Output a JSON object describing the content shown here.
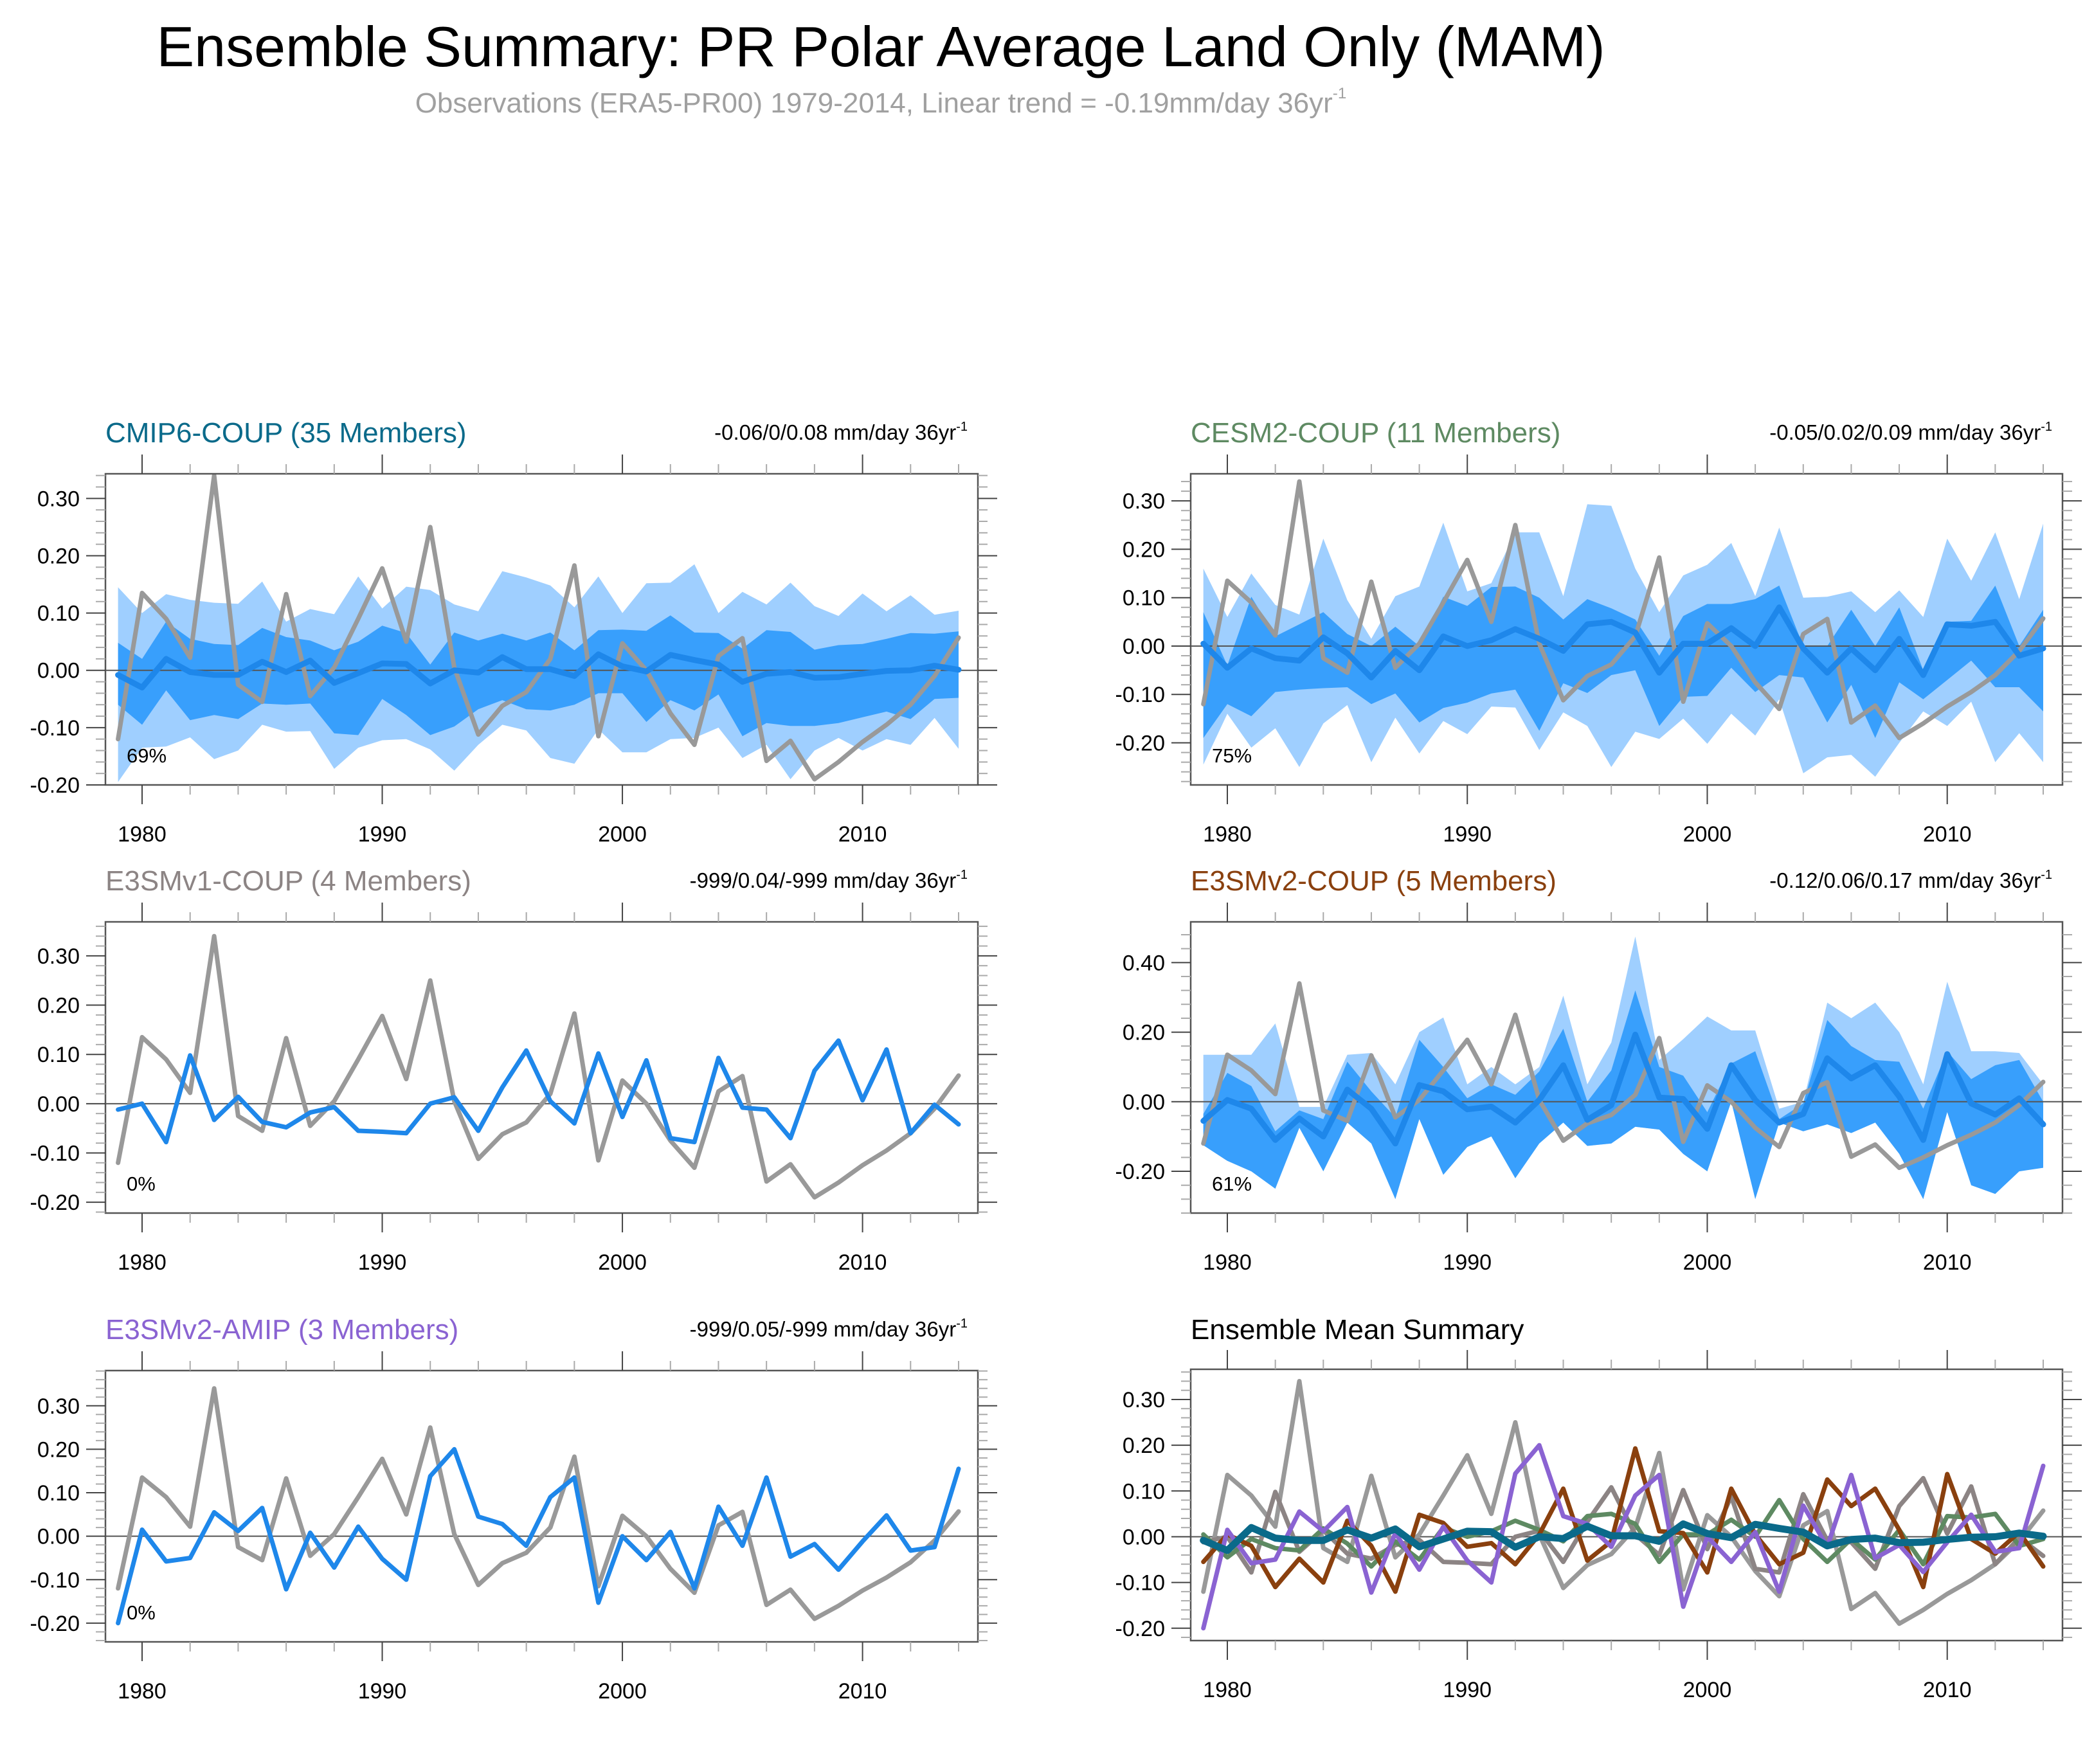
{
  "header": {
    "title": "Ensemble Summary: PR Polar Average Land Only (MAM)",
    "subtitle_main": "Observations (ERA5-PR00) 1979-2014, Linear trend = -0.19mm/day 36yr",
    "subtitle_sup": "-1"
  },
  "colors": {
    "obs": "#999999",
    "band_outer": "#9fcfff",
    "band_inner": "#389ffc",
    "mean_line": "#1e87ea",
    "zero_line": "#555555",
    "cmip6": "#0a6a8a",
    "cesm2": "#5e8a62",
    "e3smv1": "#8c8484",
    "e3smv2_coup": "#8a400e",
    "e3smv2_amip": "#8a63d2"
  },
  "chart_data": {
    "type": "line",
    "title": "Ensemble Summary: PR Polar Average Land Only (MAM)",
    "xlabel": "",
    "ylabel": "",
    "x": [
      1979,
      1980,
      1981,
      1982,
      1983,
      1984,
      1985,
      1986,
      1987,
      1988,
      1989,
      1990,
      1991,
      1992,
      1993,
      1994,
      1995,
      1996,
      1997,
      1998,
      1999,
      2000,
      2001,
      2002,
      2003,
      2004,
      2005,
      2006,
      2007,
      2008,
      2009,
      2010,
      2011,
      2012,
      2013,
      2014
    ],
    "xticks": [
      "1980",
      "1990",
      "2000",
      "2010"
    ],
    "observations": {
      "name": "Observations (ERA5-PR00)",
      "trend_label": "-0.19mm/day 36yr-1",
      "values": [
        -0.12,
        0.135,
        0.09,
        0.022,
        0.34,
        -0.025,
        -0.055,
        0.133,
        -0.045,
        0.005,
        0.09,
        0.178,
        0.05,
        0.25,
        0.005,
        -0.112,
        -0.062,
        -0.038,
        0.02,
        0.183,
        -0.115,
        0.047,
        0.0,
        -0.075,
        -0.13,
        0.025,
        0.056,
        -0.158,
        -0.123,
        -0.19,
        -0.16,
        -0.125,
        -0.095,
        -0.06,
        -0.01,
        0.057
      ]
    },
    "panels": [
      {
        "id": "cmip6",
        "title": "CMIP6-COUP (35 Members)",
        "trend": "-0.06/0/0.08 mm/day 36yr",
        "percent": "69%",
        "ylim": [
          -0.2,
          0.343
        ],
        "yticks": [
          "0.30",
          "0.20",
          "0.10",
          "0.00",
          "-0.10",
          "-0.20"
        ],
        "ytick_values": [
          0.3,
          0.2,
          0.1,
          0.0,
          -0.1,
          -0.2
        ],
        "mean": [
          -0.008,
          -0.03,
          0.02,
          -0.003,
          -0.008,
          -0.008,
          0.015,
          -0.003,
          0.017,
          -0.022,
          -0.005,
          0.012,
          0.011,
          -0.023,
          0.0,
          -0.004,
          0.023,
          0.002,
          0.002,
          -0.01,
          0.028,
          0.007,
          -0.002,
          0.027,
          0.018,
          0.01,
          -0.02,
          -0.006,
          -0.003,
          -0.013,
          -0.012,
          -0.006,
          -0.001,
          0.0,
          0.008,
          0.001
        ],
        "inner_upper": [
          0.048,
          0.02,
          0.085,
          0.055,
          0.046,
          0.044,
          0.074,
          0.058,
          0.052,
          0.035,
          0.05,
          0.078,
          0.065,
          0.01,
          0.066,
          0.052,
          0.064,
          0.052,
          0.066,
          0.035,
          0.07,
          0.071,
          0.069,
          0.096,
          0.066,
          0.065,
          0.038,
          0.07,
          0.067,
          0.036,
          0.044,
          0.046,
          0.055,
          0.065,
          0.064,
          0.068
        ],
        "inner_lower": [
          -0.06,
          -0.095,
          -0.035,
          -0.087,
          -0.078,
          -0.085,
          -0.058,
          -0.06,
          -0.058,
          -0.11,
          -0.113,
          -0.05,
          -0.078,
          -0.113,
          -0.098,
          -0.068,
          -0.052,
          -0.068,
          -0.07,
          -0.06,
          -0.04,
          -0.04,
          -0.09,
          -0.052,
          -0.07,
          -0.042,
          -0.115,
          -0.092,
          -0.097,
          -0.097,
          -0.092,
          -0.082,
          -0.072,
          -0.085,
          -0.05,
          -0.048
        ],
        "outer_upper": [
          0.145,
          0.1,
          0.133,
          0.123,
          0.118,
          0.116,
          0.155,
          0.085,
          0.107,
          0.098,
          0.164,
          0.108,
          0.146,
          0.14,
          0.115,
          0.103,
          0.173,
          0.162,
          0.148,
          0.11,
          0.164,
          0.1,
          0.152,
          0.153,
          0.185,
          0.1,
          0.137,
          0.115,
          0.153,
          0.112,
          0.095,
          0.134,
          0.103,
          0.131,
          0.097,
          0.104
        ],
        "outer_lower": [
          -0.195,
          -0.135,
          -0.133,
          -0.117,
          -0.155,
          -0.14,
          -0.095,
          -0.107,
          -0.106,
          -0.172,
          -0.135,
          -0.122,
          -0.12,
          -0.138,
          -0.175,
          -0.13,
          -0.095,
          -0.105,
          -0.153,
          -0.163,
          -0.103,
          -0.143,
          -0.143,
          -0.12,
          -0.118,
          -0.1,
          -0.153,
          -0.13,
          -0.19,
          -0.14,
          -0.118,
          -0.14,
          -0.12,
          -0.13,
          -0.083,
          -0.137
        ]
      },
      {
        "id": "cesm2",
        "title": "CESM2-COUP (11 Members)",
        "trend": "-0.05/0.02/0.09 mm/day 36yr",
        "percent": "75%",
        "ylim": [
          -0.287,
          0.356
        ],
        "yticks": [
          "0.30",
          "0.20",
          "0.10",
          "0.00",
          "-0.10",
          "-0.20"
        ],
        "ytick_values": [
          0.3,
          0.2,
          0.1,
          0.0,
          -0.1,
          -0.2
        ],
        "mean": [
          0.005,
          -0.045,
          -0.005,
          -0.025,
          -0.03,
          0.018,
          -0.015,
          -0.065,
          -0.01,
          -0.05,
          0.02,
          0.0,
          0.012,
          0.035,
          0.015,
          -0.01,
          0.045,
          0.05,
          0.028,
          -0.055,
          0.005,
          0.005,
          0.037,
          0.0,
          0.08,
          -0.005,
          -0.055,
          -0.005,
          -0.05,
          0.015,
          -0.06,
          0.045,
          0.042,
          0.05,
          -0.02,
          -0.005
        ],
        "inner_upper": [
          0.07,
          -0.04,
          0.102,
          0.02,
          0.045,
          0.07,
          0.025,
          0.0,
          0.04,
          0.0,
          0.102,
          0.083,
          0.122,
          0.123,
          0.1,
          0.055,
          0.097,
          0.078,
          0.055,
          -0.02,
          0.062,
          0.087,
          0.087,
          0.097,
          0.125,
          0.0,
          0.0,
          0.075,
          0.0,
          0.08,
          -0.05,
          0.05,
          0.052,
          0.125,
          0.0,
          0.075
        ],
        "inner_lower": [
          -0.19,
          -0.12,
          -0.145,
          -0.095,
          -0.09,
          -0.087,
          -0.085,
          -0.12,
          -0.098,
          -0.158,
          -0.128,
          -0.117,
          -0.098,
          -0.09,
          -0.175,
          -0.077,
          -0.097,
          -0.06,
          -0.05,
          -0.165,
          -0.105,
          -0.103,
          -0.045,
          -0.095,
          -0.06,
          -0.065,
          -0.158,
          -0.08,
          -0.19,
          -0.075,
          -0.11,
          -0.07,
          -0.03,
          -0.085,
          -0.085,
          -0.135
        ],
        "outer_upper": [
          0.16,
          0.06,
          0.15,
          0.085,
          0.065,
          0.222,
          0.095,
          0.015,
          0.103,
          0.123,
          0.255,
          0.113,
          0.13,
          0.235,
          0.235,
          0.103,
          0.293,
          0.29,
          0.16,
          0.07,
          0.146,
          0.168,
          0.213,
          0.103,
          0.245,
          0.1,
          0.102,
          0.113,
          0.07,
          0.115,
          0.06,
          0.222,
          0.135,
          0.235,
          0.097,
          0.253
        ],
        "outer_lower": [
          -0.245,
          -0.14,
          -0.21,
          -0.17,
          -0.25,
          -0.16,
          -0.122,
          -0.24,
          -0.148,
          -0.222,
          -0.155,
          -0.182,
          -0.125,
          -0.127,
          -0.215,
          -0.137,
          -0.165,
          -0.25,
          -0.177,
          -0.192,
          -0.15,
          -0.202,
          -0.14,
          -0.185,
          -0.11,
          -0.263,
          -0.23,
          -0.225,
          -0.27,
          -0.2,
          -0.135,
          -0.165,
          -0.115,
          -0.24,
          -0.18,
          -0.24
        ]
      },
      {
        "id": "e3smv1",
        "title": "E3SMv1-COUP (4 Members)",
        "trend": "-999/0.04/-999 mm/day 36yr",
        "percent": "0%",
        "ylim": [
          -0.222,
          0.369
        ],
        "yticks": [
          "0.30",
          "0.20",
          "0.10",
          "0.00",
          "-0.10",
          "-0.20"
        ],
        "ytick_values": [
          0.3,
          0.2,
          0.1,
          0.0,
          -0.1,
          -0.2
        ],
        "mean": [
          -0.012,
          0.0,
          -0.078,
          0.098,
          -0.033,
          0.014,
          -0.037,
          -0.048,
          -0.018,
          -0.007,
          -0.055,
          -0.057,
          -0.06,
          0.0,
          0.013,
          -0.055,
          0.033,
          0.108,
          0.005,
          -0.04,
          0.102,
          -0.027,
          0.088,
          -0.07,
          -0.078,
          0.093,
          -0.008,
          -0.012,
          -0.07,
          0.067,
          0.128,
          0.007,
          0.11,
          -0.06,
          -0.002,
          -0.042
        ]
      },
      {
        "id": "e3smv2_coup",
        "title": "E3SMv2-COUP (5 Members)",
        "trend": "-0.12/0.06/0.17 mm/day 36yr",
        "percent": "61%",
        "ylim": [
          -0.32,
          0.517
        ],
        "yticks": [
          "0.40",
          "0.20",
          "0.00",
          "-0.20"
        ],
        "ytick_values": [
          0.4,
          0.2,
          0.0,
          -0.2
        ],
        "mean": [
          -0.055,
          0.005,
          -0.02,
          -0.11,
          -0.048,
          -0.1,
          0.035,
          -0.02,
          -0.12,
          0.048,
          0.03,
          -0.022,
          -0.014,
          -0.06,
          0.005,
          0.105,
          -0.052,
          -0.01,
          0.193,
          0.012,
          0.008,
          -0.078,
          0.105,
          0.005,
          -0.06,
          -0.035,
          0.125,
          0.067,
          0.105,
          0.015,
          -0.11,
          0.137,
          -0.005,
          -0.037,
          0.01,
          -0.065
        ],
        "inner_upper": [
          -0.035,
          0.083,
          0.045,
          -0.085,
          -0.025,
          -0.05,
          0.115,
          0.03,
          -0.045,
          0.178,
          0.1,
          0.01,
          0.05,
          0.02,
          0.087,
          0.21,
          0.0,
          0.09,
          0.32,
          0.1,
          0.075,
          -0.03,
          0.11,
          0.145,
          -0.05,
          -0.005,
          0.235,
          0.16,
          0.12,
          0.115,
          -0.02,
          0.145,
          0.065,
          0.105,
          0.12,
          0.0
        ],
        "inner_lower": [
          -0.125,
          -0.17,
          -0.2,
          -0.25,
          -0.075,
          -0.2,
          -0.06,
          -0.12,
          -0.28,
          -0.05,
          -0.21,
          -0.13,
          -0.1,
          -0.22,
          -0.12,
          -0.06,
          -0.127,
          -0.12,
          -0.072,
          -0.08,
          -0.15,
          -0.2,
          0.0,
          -0.28,
          -0.06,
          -0.085,
          -0.065,
          -0.09,
          -0.06,
          -0.15,
          -0.28,
          -0.03,
          -0.24,
          -0.265,
          -0.2,
          -0.19
        ],
        "outer_upper": [
          0.135,
          0.135,
          0.135,
          0.225,
          -0.015,
          -0.015,
          0.135,
          0.14,
          0.05,
          0.2,
          0.242,
          0.05,
          0.1,
          0.05,
          0.1,
          0.305,
          0.05,
          0.17,
          0.475,
          0.12,
          0.18,
          0.245,
          0.205,
          0.205,
          -0.02,
          0.0,
          0.285,
          0.24,
          0.285,
          0.2,
          0.05,
          0.345,
          0.145,
          0.145,
          0.14,
          0.05
        ],
        "outer_lower": [
          -0.125,
          -0.17,
          -0.2,
          -0.14,
          -0.075,
          -0.05,
          -0.06,
          -0.12,
          -0.09,
          -0.05,
          -0.05,
          -0.08,
          -0.08,
          -0.06,
          -0.06,
          -0.06,
          -0.127,
          -0.12,
          -0.072,
          -0.08,
          -0.09,
          -0.11,
          0.0,
          -0.03,
          -0.06,
          -0.085,
          -0.065,
          -0.09,
          -0.06,
          -0.05,
          -0.05,
          -0.03,
          -0.035,
          -0.035,
          -0.035,
          -0.035
        ]
      },
      {
        "id": "e3smv2_amip",
        "title": "E3SMv2-AMIP (3 Members)",
        "trend": "-999/0.05/-999 mm/day 36yr",
        "percent": "0%",
        "ylim": [
          -0.243,
          0.381
        ],
        "yticks": [
          "0.30",
          "0.20",
          "0.10",
          "0.00",
          "-0.10",
          "-0.20"
        ],
        "ytick_values": [
          0.3,
          0.2,
          0.1,
          0.0,
          -0.1,
          -0.2
        ],
        "mean": [
          -0.2,
          0.015,
          -0.058,
          -0.05,
          0.055,
          0.012,
          0.065,
          -0.122,
          0.008,
          -0.072,
          0.022,
          -0.052,
          -0.1,
          0.138,
          0.2,
          0.045,
          0.028,
          -0.022,
          0.09,
          0.135,
          -0.153,
          0.0,
          -0.055,
          0.01,
          -0.12,
          0.068,
          -0.022,
          0.135,
          -0.047,
          -0.018,
          -0.077,
          -0.012,
          0.048,
          -0.033,
          -0.025,
          0.155
        ]
      },
      {
        "id": "ensemble_mean",
        "title": "Ensemble Mean Summary",
        "trend": "",
        "percent": "",
        "ylim": [
          -0.227,
          0.366
        ],
        "yticks": [
          "0.30",
          "0.20",
          "0.10",
          "0.00",
          "-0.10",
          "-0.20"
        ],
        "ytick_values": [
          0.3,
          0.2,
          0.1,
          0.0,
          -0.1,
          -0.2
        ],
        "series": [
          {
            "name": "Observations",
            "color_key": "obs"
          },
          {
            "name": "E3SMv1-COUP",
            "color_key": "e3smv1",
            "from_panel": "e3smv1"
          },
          {
            "name": "CESM2-COUP",
            "color_key": "cesm2",
            "from_panel": "cesm2"
          },
          {
            "name": "E3SMv2-COUP",
            "color_key": "e3smv2_coup",
            "from_panel": "e3smv2_coup"
          },
          {
            "name": "E3SMv2-AMIP",
            "color_key": "e3smv2_amip",
            "from_panel": "e3smv2_amip"
          },
          {
            "name": "CMIP6-COUP",
            "color_key": "cmip6",
            "from_panel": "cmip6"
          }
        ]
      }
    ]
  }
}
